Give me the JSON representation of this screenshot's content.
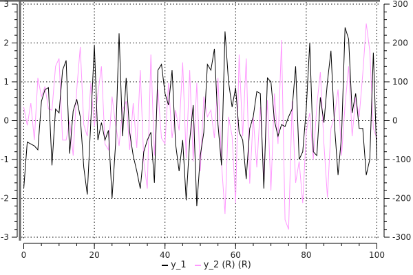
{
  "chart_data": {
    "type": "line",
    "title": "",
    "xlabel": "",
    "ylabel": "",
    "y2label": "",
    "xlim": [
      0,
      100
    ],
    "ylim": [
      -3,
      3
    ],
    "y2lim": [
      -300,
      300
    ],
    "grid": true,
    "legend_placement": "bottom",
    "x_ticks": [
      "0",
      "20",
      "40",
      "60",
      "80",
      "100"
    ],
    "y_ticks": [
      "-3",
      "-2",
      "-1",
      "0",
      "1",
      "2",
      "3"
    ],
    "y2_ticks": [
      "-300",
      "-200",
      "-100",
      "0",
      "100",
      "200",
      "300"
    ],
    "series": [
      {
        "name": "y_1",
        "axis": "left",
        "color": "#000000",
        "values": [
          -1.75,
          -0.55,
          -0.6,
          -0.65,
          -0.75,
          0.5,
          0.8,
          0.85,
          -1.15,
          0.3,
          0.2,
          1.3,
          1.55,
          -0.85,
          0.25,
          0.55,
          0.1,
          -1.2,
          -1.9,
          0.0,
          1.95,
          -0.5,
          -0.05,
          -0.5,
          -0.25,
          -2.0,
          -0.6,
          2.25,
          -0.4,
          1.1,
          -0.3,
          -0.9,
          -1.3,
          -1.75,
          -0.8,
          -0.5,
          -0.3,
          -1.6,
          1.3,
          1.45,
          0.7,
          0.4,
          1.3,
          -0.6,
          -1.3,
          -0.5,
          -2.05,
          -0.5,
          0.4,
          -2.2,
          -0.9,
          -0.3,
          1.45,
          1.3,
          1.85,
          -0.1,
          -1.15,
          2.3,
          1.0,
          0.35,
          0.85,
          -0.3,
          -0.5,
          -1.5,
          -0.2,
          0.1,
          0.75,
          0.7,
          -1.75,
          1.1,
          1.0,
          0.0,
          -0.4,
          -0.1,
          -0.15,
          0.1,
          0.3,
          1.4,
          -1.0,
          -0.8,
          0.3,
          2.0,
          -0.8,
          -0.9,
          0.6,
          -0.05,
          1.0,
          1.8,
          -0.1,
          -1.4,
          -0.4,
          2.4,
          2.1,
          0.2,
          0.7,
          -0.2,
          -0.2,
          -1.4,
          -1.0,
          1.75,
          -1.0
        ]
      },
      {
        "name": "y_2 (R) (R)",
        "axis": "right",
        "color": "#ff99ff",
        "values": [
          35,
          -12,
          45,
          -50,
          110,
          62,
          88,
          30,
          27,
          140,
          160,
          -50,
          -50,
          0,
          -90,
          80,
          190,
          -10,
          -40,
          97,
          -15,
          70,
          140,
          -60,
          -75,
          62,
          -10,
          -65,
          27,
          50,
          -75,
          45,
          -70,
          130,
          -105,
          -175,
          170,
          -90,
          80,
          -45,
          -60,
          97,
          -45,
          27,
          -25,
          150,
          -97,
          130,
          -105,
          97,
          -130,
          62,
          10,
          27,
          -45,
          110,
          -110,
          -240,
          10,
          -40,
          -212,
          170,
          -40,
          160,
          -162,
          10,
          -120,
          35,
          -145,
          53,
          -180,
          70,
          -60,
          208,
          -255,
          -280,
          50,
          -160,
          -105,
          -212,
          -30,
          20,
          -100,
          40,
          125,
          -60,
          -198,
          -20,
          10,
          80,
          -90,
          40,
          140,
          -40,
          60,
          10,
          120,
          250,
          180,
          -20,
          -45
        ]
      }
    ]
  },
  "legend": {
    "items": [
      {
        "label": "y_1",
        "color": "#000000"
      },
      {
        "label": "y_2 (R) (R)",
        "color": "#ff99ff"
      }
    ]
  }
}
